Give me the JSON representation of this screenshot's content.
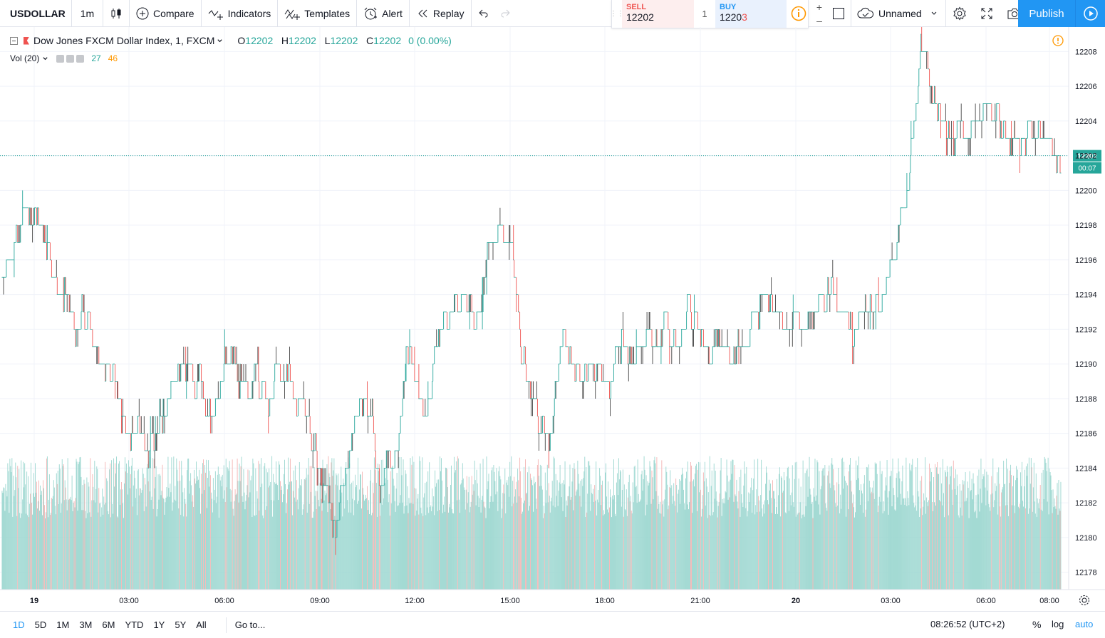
{
  "toolbar": {
    "symbol": "USDOLLAR",
    "interval": "1m",
    "compare": "Compare",
    "indicators": "Indicators",
    "templates": "Templates",
    "alert": "Alert",
    "replay": "Replay",
    "layout_name": "Unnamed",
    "publish": "Publish"
  },
  "trade": {
    "sell_label": "SELL",
    "sell_price": "12202",
    "quantity": "1",
    "buy_label": "BUY",
    "buy_price_main": "1220",
    "buy_price_last": "3"
  },
  "legend": {
    "title": "Dow Jones FXCM Dollar Index, 1, FXCM",
    "o_label": "O",
    "o_value": "12202",
    "h_label": "H",
    "h_value": "12202",
    "l_label": "L",
    "l_value": "12202",
    "c_label": "C",
    "c_value": "12202",
    "change": "0 (0.00%)",
    "vol_label": "Vol (20)",
    "vol_value": "27",
    "vol_ma": "46"
  },
  "bottom": {
    "ranges": [
      "1D",
      "5D",
      "1M",
      "3M",
      "6M",
      "YTD",
      "1Y",
      "5Y",
      "All"
    ],
    "active_range": "1D",
    "goto": "Go to...",
    "clock": "08:26:52 (UTC+2)",
    "percent": "%",
    "log": "log",
    "auto": "auto"
  },
  "colors": {
    "up": "#26a69a",
    "down": "#ef5350",
    "volume_up": "#9ad6cf",
    "volume_down": "#f4b3b2",
    "accent": "#2196f3"
  },
  "chart_data": {
    "type": "candlestick",
    "symbol": "USDOLLAR",
    "interval": "1m",
    "ylim": [
      12177,
      12209
    ],
    "y_ticks": [
      12178,
      12180,
      12182,
      12184,
      12186,
      12188,
      12190,
      12192,
      12194,
      12196,
      12198,
      12200,
      12202,
      12204,
      12206,
      12208
    ],
    "x_ticks": [
      "19",
      "03:00",
      "06:00",
      "09:00",
      "12:00",
      "15:00",
      "18:00",
      "21:00",
      "20",
      "03:00",
      "06:00",
      "08:00"
    ],
    "last_price": 12202,
    "last_price_label": "12202",
    "countdown": "00:07",
    "price_path": [
      [
        0,
        12195
      ],
      [
        1,
        12196
      ],
      [
        2,
        12197
      ],
      [
        3,
        12198
      ],
      [
        4,
        12198
      ],
      [
        5,
        12198.5
      ],
      [
        6,
        12198
      ],
      [
        7,
        12196
      ],
      [
        8,
        12195
      ],
      [
        9,
        12194
      ],
      [
        10,
        12193
      ],
      [
        11,
        12192
      ],
      [
        12,
        12193
      ],
      [
        13,
        12192
      ],
      [
        14,
        12191
      ],
      [
        15,
        12190
      ],
      [
        16,
        12189
      ],
      [
        17,
        12188
      ],
      [
        18,
        12187
      ],
      [
        19,
        12186
      ],
      [
        20,
        12186
      ],
      [
        21,
        12186
      ],
      [
        22,
        12185
      ],
      [
        23,
        12186
      ],
      [
        24,
        12187
      ],
      [
        25,
        12188
      ],
      [
        26,
        12189
      ],
      [
        27,
        12190
      ],
      [
        28,
        12189
      ],
      [
        29,
        12189
      ],
      [
        30,
        12188
      ],
      [
        31,
        12187
      ],
      [
        32,
        12188
      ],
      [
        33,
        12190
      ],
      [
        34,
        12191
      ],
      [
        35,
        12190
      ],
      [
        36,
        12189
      ],
      [
        37,
        12189
      ],
      [
        38,
        12190
      ],
      [
        39,
        12189
      ],
      [
        40,
        12188
      ],
      [
        41,
        12190
      ],
      [
        42,
        12189
      ],
      [
        43,
        12190
      ],
      [
        44,
        12188
      ],
      [
        45,
        12187
      ],
      [
        46,
        12186
      ],
      [
        47,
        12185
      ],
      [
        48,
        12183
      ],
      [
        49,
        12181
      ],
      [
        50,
        12180
      ],
      [
        51,
        12183
      ],
      [
        52,
        12186
      ],
      [
        53,
        12187
      ],
      [
        54,
        12188
      ],
      [
        55,
        12187
      ],
      [
        56,
        12185
      ],
      [
        57,
        12183
      ],
      [
        58,
        12185
      ],
      [
        59,
        12188
      ],
      [
        60,
        12190
      ],
      [
        61,
        12191
      ],
      [
        62,
        12188
      ],
      [
        63,
        12186
      ],
      [
        64,
        12188
      ],
      [
        65,
        12191
      ],
      [
        66,
        12193
      ],
      [
        67,
        12192
      ],
      [
        68,
        12193
      ],
      [
        69,
        12194
      ],
      [
        70,
        12193
      ],
      [
        71,
        12192
      ],
      [
        72,
        12194
      ],
      [
        73,
        12196
      ],
      [
        74,
        12197
      ],
      [
        75,
        12195
      ],
      [
        76,
        12193
      ],
      [
        77,
        12191
      ],
      [
        78,
        12190
      ],
      [
        79,
        12188
      ],
      [
        80,
        12187
      ],
      [
        81,
        12186
      ],
      [
        82,
        12185
      ],
      [
        83,
        12188
      ],
      [
        84,
        12192
      ],
      [
        85,
        12191
      ],
      [
        86,
        12189
      ],
      [
        87,
        12189
      ],
      [
        88,
        12190
      ],
      [
        89,
        12190
      ],
      [
        90,
        12189
      ],
      [
        91,
        12188
      ],
      [
        92,
        12190
      ],
      [
        93,
        12192
      ],
      [
        94,
        12191
      ],
      [
        95,
        12190
      ],
      [
        96,
        12191
      ],
      [
        97,
        12192
      ],
      [
        98,
        12191
      ],
      [
        99,
        12192
      ],
      [
        100,
        12192
      ],
      [
        101,
        12191
      ],
      [
        102,
        12192
      ],
      [
        103,
        12193
      ],
      [
        104,
        12192
      ],
      [
        105,
        12191
      ],
      [
        106,
        12192
      ],
      [
        107,
        12192
      ],
      [
        108,
        12191
      ],
      [
        109,
        12190
      ],
      [
        110,
        12191
      ],
      [
        111,
        12191
      ],
      [
        112,
        12192
      ],
      [
        113,
        12193
      ],
      [
        114,
        12194
      ],
      [
        115,
        12193
      ],
      [
        116,
        12192
      ],
      [
        117,
        12192
      ],
      [
        118,
        12193
      ],
      [
        119,
        12193
      ],
      [
        120,
        12192
      ],
      [
        121,
        12193
      ],
      [
        122,
        12193
      ],
      [
        123,
        12194
      ],
      [
        124,
        12194
      ],
      [
        125,
        12194
      ],
      [
        126,
        12193
      ],
      [
        127,
        12193
      ],
      [
        128,
        12192
      ],
      [
        129,
        12193
      ],
      [
        130,
        12193
      ],
      [
        131,
        12194
      ],
      [
        132,
        12194
      ],
      [
        133,
        12195
      ],
      [
        134,
        12197
      ],
      [
        135,
        12200
      ],
      [
        136,
        12204
      ],
      [
        137,
        12207
      ],
      [
        138,
        12208
      ],
      [
        139,
        12207
      ],
      [
        140,
        12205
      ],
      [
        141,
        12204
      ],
      [
        142,
        12203
      ],
      [
        143,
        12203
      ],
      [
        144,
        12204
      ],
      [
        145,
        12203
      ],
      [
        146,
        12204
      ],
      [
        147,
        12204
      ],
      [
        148,
        12205
      ],
      [
        149,
        12204
      ],
      [
        150,
        12204
      ],
      [
        151,
        12203
      ],
      [
        152,
        12203
      ],
      [
        153,
        12203
      ],
      [
        154,
        12204
      ],
      [
        155,
        12203
      ],
      [
        156,
        12204
      ],
      [
        157,
        12203
      ],
      [
        158,
        12202
      ],
      [
        159,
        12201
      ]
    ],
    "volume_axis": [
      0,
      80
    ],
    "volume_note": "Vol (20)"
  }
}
